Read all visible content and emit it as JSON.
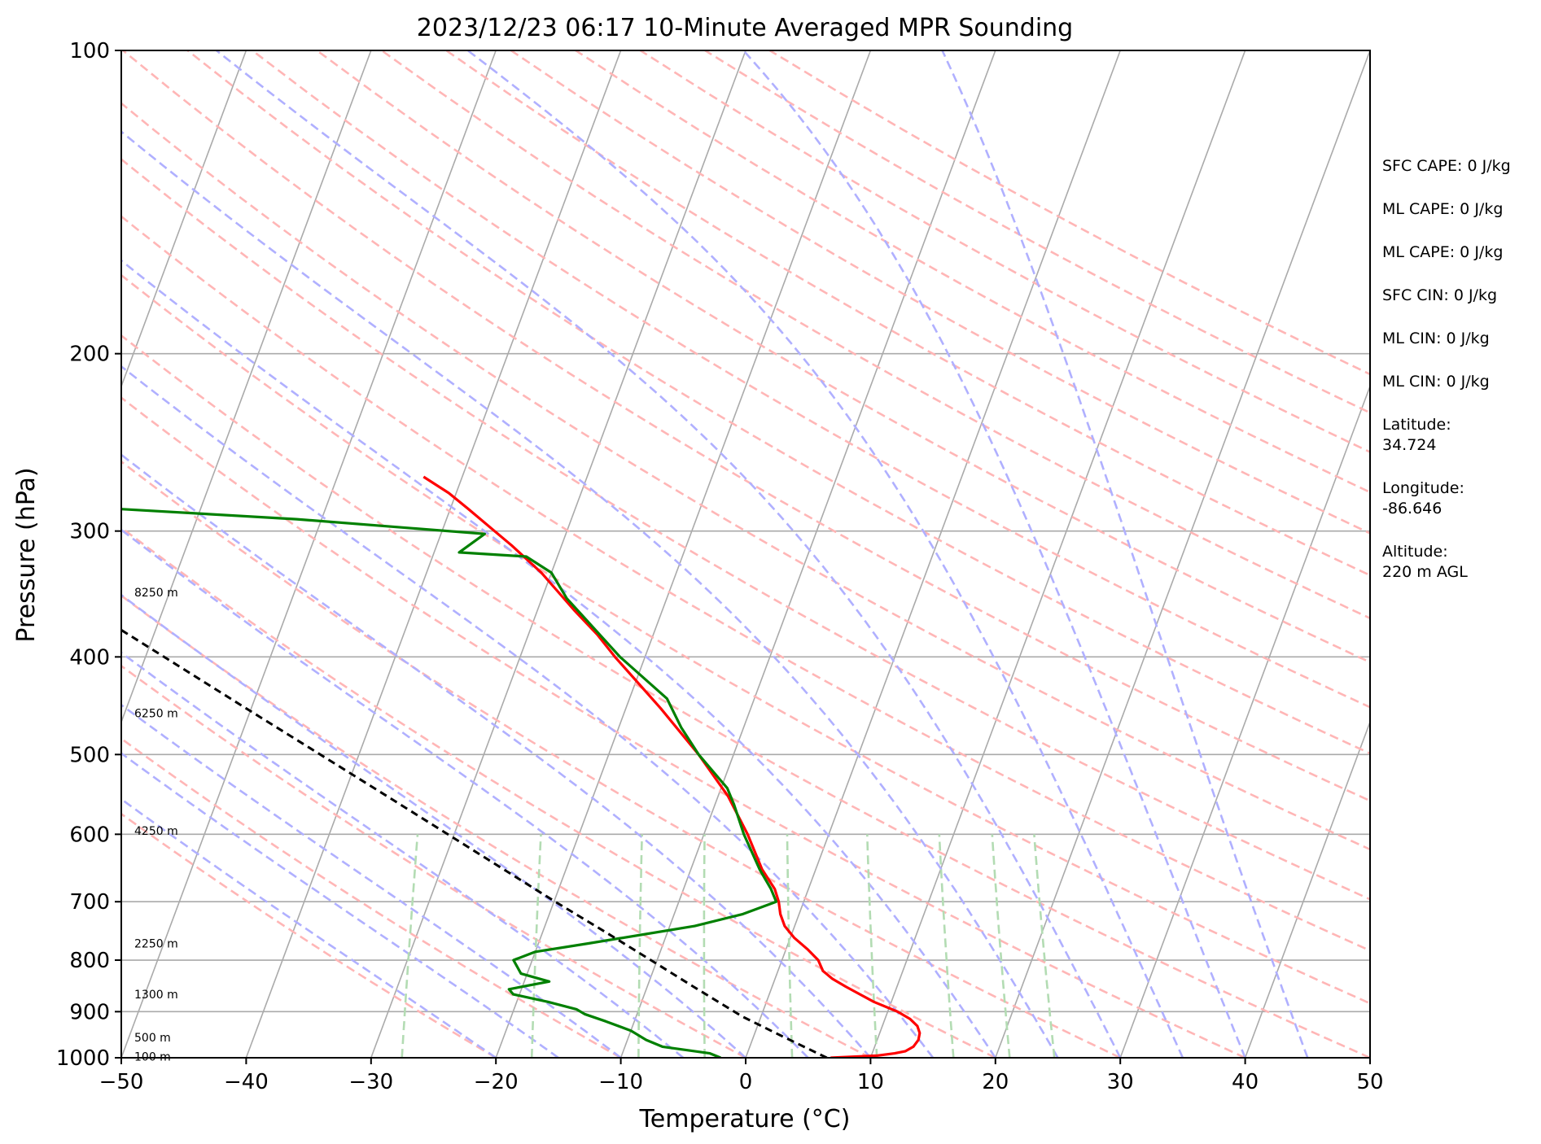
{
  "chart_data": {
    "type": "skew-t log-p",
    "title": "2023/12/23 06:17 10-Minute Averaged MPR Sounding",
    "xlabel": "Temperature (°C)",
    "ylabel": "Pressure (hPa)",
    "xlim": [
      -50,
      50
    ],
    "ylim": [
      1000,
      100
    ],
    "y_scale": "log",
    "x_ticks": [
      -50,
      -40,
      -30,
      -20,
      -10,
      0,
      10,
      20,
      30,
      40,
      50
    ],
    "x_tick_labels": [
      "−50",
      "−40",
      "−30",
      "−20",
      "−10",
      "0",
      "10",
      "20",
      "30",
      "40",
      "50"
    ],
    "y_ticks": [
      100,
      200,
      300,
      400,
      500,
      600,
      700,
      800,
      900,
      1000
    ],
    "y_tick_labels": [
      "100",
      "200",
      "300",
      "400",
      "500",
      "600",
      "700",
      "800",
      "900",
      "1000"
    ],
    "grid": true,
    "colors": {
      "temperature": "#ff0000",
      "dewpoint": "#008000",
      "parcel": "#000000",
      "isotherms": "#aaaaaa",
      "dry_adiabats": "#ffb6b6",
      "moist_adiabats": "#b0b0ff",
      "mixing_ratio": "#b3dcb3"
    },
    "isotherms": [
      -130,
      -120,
      -110,
      -100,
      -90,
      -80,
      -70,
      -60,
      -50,
      -40,
      -30,
      -20,
      -10,
      0,
      10,
      20,
      30,
      40,
      50
    ],
    "dry_adiabats": [
      -20,
      -10,
      0,
      10,
      20,
      30,
      40,
      50,
      60,
      70,
      80,
      90,
      100,
      110,
      120,
      130,
      140,
      150,
      160,
      170,
      180,
      190,
      200
    ],
    "moist_adiabats": [
      -20,
      -15,
      -10,
      -5,
      0,
      5,
      10,
      15,
      20,
      25,
      30,
      35,
      40,
      45
    ],
    "mixing_ratio_lines": [
      0.4,
      1,
      2,
      3,
      5,
      8,
      12,
      16,
      20
    ],
    "series": [
      {
        "name": "temperature",
        "points": [
          [
            1000,
            6.8
          ],
          [
            995,
            10.5
          ],
          [
            990,
            11.8
          ],
          [
            985,
            12.6
          ],
          [
            975,
            13.1
          ],
          [
            960,
            13.3
          ],
          [
            945,
            13.2
          ],
          [
            930,
            12.8
          ],
          [
            915,
            12.0
          ],
          [
            900,
            10.8
          ],
          [
            880,
            8.6
          ],
          [
            860,
            6.8
          ],
          [
            850,
            5.9
          ],
          [
            835,
            4.6
          ],
          [
            820,
            3.6
          ],
          [
            800,
            2.9
          ],
          [
            780,
            1.7
          ],
          [
            760,
            0.3
          ],
          [
            740,
            -0.8
          ],
          [
            720,
            -1.5
          ],
          [
            700,
            -2.0
          ],
          [
            680,
            -2.7
          ],
          [
            650,
            -4.3
          ],
          [
            600,
            -6.5
          ],
          [
            550,
            -9.2
          ],
          [
            500,
            -12.8
          ],
          [
            450,
            -17.2
          ],
          [
            400,
            -22.4
          ],
          [
            380,
            -24.5
          ],
          [
            360,
            -27.0
          ],
          [
            340,
            -29.5
          ],
          [
            330,
            -30.8
          ],
          [
            310,
            -34.0
          ],
          [
            300,
            -35.8
          ],
          [
            285,
            -38.6
          ],
          [
            275,
            -40.6
          ],
          [
            265,
            -43.1
          ]
        ]
      },
      {
        "name": "dewpoint",
        "points": [
          [
            1000,
            -2.0
          ],
          [
            990,
            -3.0
          ],
          [
            975,
            -7.0
          ],
          [
            960,
            -8.5
          ],
          [
            940,
            -10.0
          ],
          [
            920,
            -12.3
          ],
          [
            905,
            -14.2
          ],
          [
            895,
            -15.0
          ],
          [
            880,
            -17.5
          ],
          [
            865,
            -20.5
          ],
          [
            855,
            -21.0
          ],
          [
            840,
            -18.0
          ],
          [
            825,
            -20.5
          ],
          [
            800,
            -21.5
          ],
          [
            785,
            -20.0
          ],
          [
            770,
            -16.0
          ],
          [
            740,
            -8.0
          ],
          [
            720,
            -4.5
          ],
          [
            700,
            -2.2
          ],
          [
            680,
            -3.0
          ],
          [
            650,
            -4.5
          ],
          [
            600,
            -6.8
          ],
          [
            560,
            -8.5
          ],
          [
            540,
            -9.5
          ],
          [
            500,
            -12.8
          ],
          [
            470,
            -15.0
          ],
          [
            440,
            -17.0
          ],
          [
            400,
            -22.0
          ],
          [
            370,
            -25.5
          ],
          [
            350,
            -28.0
          ],
          [
            330,
            -30.0
          ],
          [
            318,
            -32.5
          ],
          [
            315,
            -38.0
          ],
          [
            302,
            -36.5
          ],
          [
            292,
            -52.0
          ],
          [
            285,
            -67.0
          ]
        ]
      },
      {
        "name": "parcel",
        "points": [
          [
            1000,
            6.5
          ],
          [
            950,
            2.1
          ],
          [
            910,
            -1.5
          ],
          [
            850,
            -6.3
          ],
          [
            800,
            -10.5
          ],
          [
            750,
            -15.0
          ],
          [
            700,
            -19.9
          ],
          [
            650,
            -25.0
          ],
          [
            600,
            -30.5
          ],
          [
            550,
            -36.5
          ],
          [
            500,
            -43.1
          ],
          [
            450,
            -50.4
          ],
          [
            400,
            -58.5
          ],
          [
            350,
            -67.7
          ],
          [
            300,
            -78.3
          ],
          [
            265,
            -86.7
          ]
        ]
      }
    ],
    "height_labels": [
      {
        "text": "8250 m",
        "pressure": 345
      },
      {
        "text": "6250 m",
        "pressure": 455
      },
      {
        "text": "4250 m",
        "pressure": 595
      },
      {
        "text": "2250 m",
        "pressure": 770
      },
      {
        "text": "1300 m",
        "pressure": 865
      },
      {
        "text": "500 m",
        "pressure": 955
      },
      {
        "text": "100 m",
        "pressure": 997
      }
    ],
    "annotations": [
      "SFC CAPE: 0 J/kg",
      "ML CAPE: 0 J/kg",
      "ML CAPE: 0 J/kg",
      "SFC CIN: 0 J/kg",
      "ML CIN: 0 J/kg",
      "ML CIN: 0 J/kg",
      "Latitude:\n34.724",
      "Longitude:\n-86.646",
      "Altitude:\n220 m AGL"
    ]
  }
}
